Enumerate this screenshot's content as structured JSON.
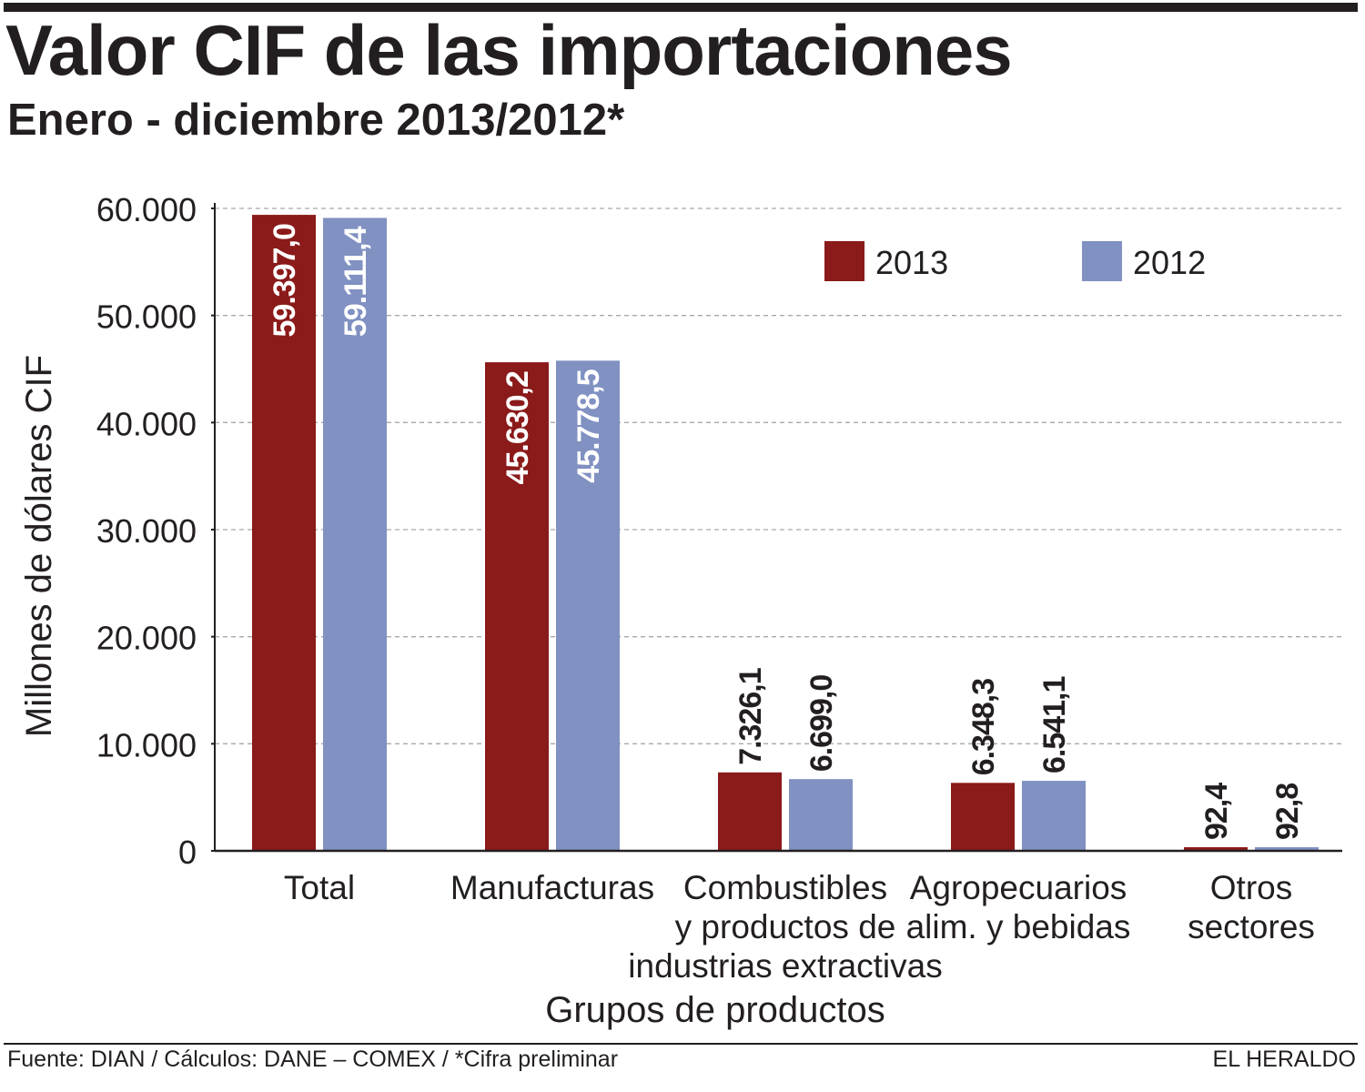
{
  "header": {
    "title": "Valor CIF de las importaciones",
    "subtitle": "Enero - diciembre 2013/2012*"
  },
  "footer": {
    "source": "Fuente: DIAN  /  Cálculos: DANE – COMEX  /  *Cifra preliminar",
    "brand": "EL HERALDO"
  },
  "colors": {
    "series_2013": "#8b1a1a",
    "series_2012": "#8091c2",
    "text": "#231f20",
    "grid": "#a7a9ac"
  },
  "chart_data": {
    "type": "bar",
    "title": "Valor CIF de las importaciones",
    "subtitle": "Enero - diciembre 2013/2012*",
    "xlabel": "Grupos de productos",
    "ylabel": "Millones de dólares CIF",
    "ylim": [
      0,
      60000
    ],
    "yticks": [
      0,
      10000,
      20000,
      30000,
      40000,
      50000,
      60000
    ],
    "ytick_labels": [
      "0",
      "10.000",
      "20.000",
      "30.000",
      "40.000",
      "50.000",
      "60.000"
    ],
    "grid": true,
    "legend_position": "top-right",
    "categories": [
      [
        "Total"
      ],
      [
        "Manufacturas"
      ],
      [
        "Combustibles",
        "y productos de",
        "industrias extractivas"
      ],
      [
        "Agropecuarios",
        "alim. y bebidas"
      ],
      [
        "Otros",
        "sectores"
      ]
    ],
    "series": [
      {
        "name": "2013",
        "values": [
          59397.0,
          45630.2,
          7326.1,
          6348.3,
          92.4
        ],
        "labels": [
          "59.397,0",
          "45.630,2",
          "7.326,1",
          "6.348,3",
          "92,4"
        ]
      },
      {
        "name": "2012",
        "values": [
          59111.4,
          45778.5,
          6699.0,
          6541.1,
          92.8
        ],
        "labels": [
          "59.111,4",
          "45.778,5",
          "6.699,0",
          "6.541,1",
          "92,8"
        ]
      }
    ]
  }
}
